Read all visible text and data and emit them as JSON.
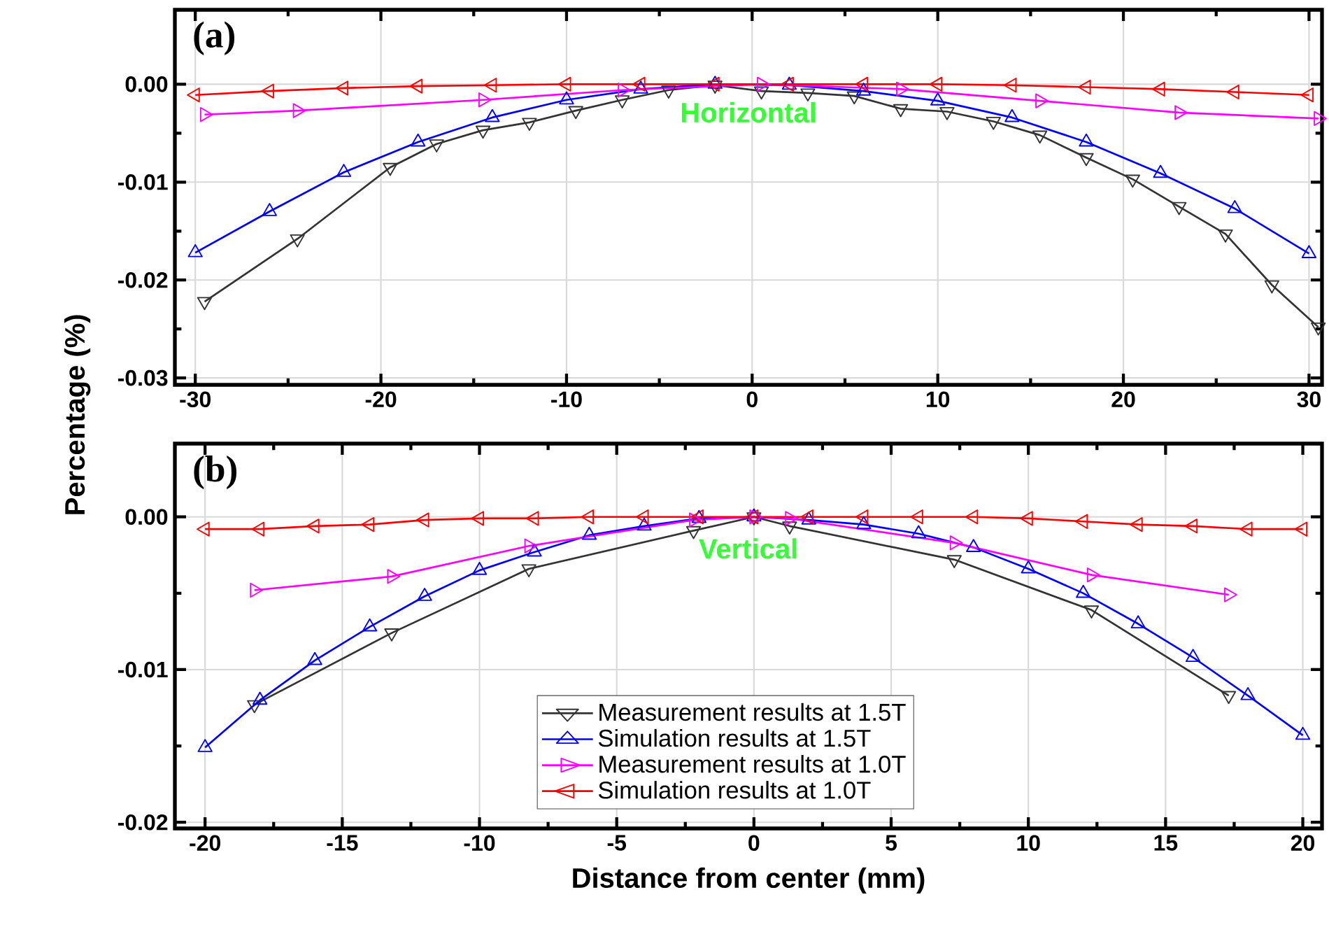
{
  "chart_data": [
    {
      "type": "line",
      "ylabel": "Percentage (%)",
      "annotations": [
        "(a)",
        "Horizontal"
      ],
      "xlim": [
        -31.1,
        30.7
      ],
      "xticks": [
        -30,
        -20,
        -10,
        0,
        10,
        20,
        30
      ],
      "ylim": [
        -0.0307,
        0.0076
      ],
      "yticks": [
        {
          "value": 0,
          "label": "0.00"
        },
        -0.01,
        -0.02,
        -0.03
      ],
      "grid": true,
      "legend": false,
      "tick_labels": "xy",
      "series": [
        {
          "color": "#333333",
          "marker": "triangle-down",
          "x": [
            -29.5,
            -24.5,
            -19.5,
            -17,
            -14.5,
            -12,
            -9.5,
            -7,
            -4.5,
            -2,
            0.5,
            3,
            5.5,
            8,
            10.5,
            13,
            15.5,
            18,
            20.5,
            23,
            25.5,
            28,
            30.5
          ],
          "values": [
            -0.0222,
            -0.0158,
            -0.0085,
            -0.0061,
            -0.0047,
            -0.0039,
            -0.0027,
            -0.0016,
            -0.0006,
            -0.0001,
            -0.0007,
            -0.0009,
            -0.0012,
            -0.0025,
            -0.0028,
            -0.0038,
            -0.0052,
            -0.0075,
            -0.0097,
            -0.0125,
            -0.0153,
            -0.0205,
            -0.0248
          ]
        },
        {
          "color": "#0000ff",
          "marker": "triangle",
          "x": [
            -30,
            -26,
            -22,
            -18,
            -14,
            -10,
            -6,
            -2,
            2,
            6,
            10,
            14,
            18,
            22,
            26,
            30
          ],
          "values": [
            -0.0172,
            -0.013,
            -0.009,
            -0.0059,
            -0.0034,
            -0.0016,
            -0.0005,
            0.0,
            -0.0001,
            -0.0007,
            -0.0017,
            -0.0034,
            -0.0059,
            -0.0091,
            -0.0127,
            -0.0173
          ]
        },
        {
          "color": "#ff00ff",
          "marker": "triangle-right",
          "x": [
            -29.5,
            -24.5,
            -14.5,
            -7,
            0.5,
            8,
            15.5,
            23,
            30.5
          ],
          "values": [
            -0.0031,
            -0.0027,
            -0.0016,
            -0.0006,
            0.0,
            -0.0005,
            -0.0017,
            -0.0029,
            -0.0035
          ]
        },
        {
          "color": "#ff0000",
          "marker": "triangle-left",
          "x": [
            -30,
            -26,
            -22,
            -18,
            -14,
            -10,
            -6,
            -2,
            2,
            6,
            10,
            14,
            18,
            22,
            26,
            30
          ],
          "values": [
            -0.0011,
            -0.0007,
            -0.0004,
            -0.0002,
            -0.0001,
            0.0,
            0.0,
            0.0,
            0.0,
            0.0,
            0.0,
            -0.0001,
            -0.0003,
            -0.0005,
            -0.0008,
            -0.0011
          ]
        }
      ]
    },
    {
      "type": "line",
      "xlabel": "Distance from center (mm)",
      "annotations": [
        "(b)",
        "Vertical"
      ],
      "xlim": [
        -21.1,
        20.7
      ],
      "xticks": [
        -20,
        -15,
        -10,
        -5,
        0,
        5,
        10,
        15,
        20
      ],
      "ylim": [
        -0.0204,
        0.0048
      ],
      "yticks": [
        {
          "value": 0,
          "label": "0.00"
        },
        -0.01,
        -0.02
      ],
      "grid": true,
      "legend": "bottom",
      "series": [
        {
          "name": "Measurement results at 1.5T",
          "color": "#333333",
          "marker": "triangle-down",
          "x": [
            -18.2,
            -13.2,
            -8.2,
            -2.2,
            0,
            1.3,
            7.3,
            12.3,
            17.3
          ],
          "values": [
            -0.0123,
            -0.0076,
            -0.0034,
            -0.0009,
            0.0,
            -0.0006,
            -0.0028,
            -0.0061,
            -0.0117
          ]
        },
        {
          "name": "Simulation results at 1.5T",
          "color": "#0000ff",
          "marker": "triangle",
          "x": [
            -20,
            -18,
            -16,
            -14,
            -12,
            -10,
            -8,
            -6,
            -4,
            -2,
            0,
            2,
            4,
            6,
            8,
            10,
            12,
            14,
            16,
            18,
            20
          ],
          "values": [
            -0.0151,
            -0.012,
            -0.0094,
            -0.0072,
            -0.0052,
            -0.0035,
            -0.0023,
            -0.0012,
            -0.0006,
            -0.0001,
            0.0,
            -0.0002,
            -0.0005,
            -0.0011,
            -0.002,
            -0.0034,
            -0.005,
            -0.007,
            -0.0092,
            -0.0117,
            -0.0143
          ]
        },
        {
          "name": "Measurement results at 1.0T",
          "color": "#ff00ff",
          "marker": "triangle-right",
          "x": [
            -18.2,
            -13.2,
            -8.2,
            -2.2,
            0,
            1.3,
            7.3,
            12.3,
            17.3
          ],
          "values": [
            -0.0048,
            -0.0039,
            -0.0019,
            -0.0002,
            0.0,
            -0.0001,
            -0.0017,
            -0.0038,
            -0.0051
          ]
        },
        {
          "name": "Simulation results at 1.0T",
          "color": "#ff0000",
          "marker": "triangle-left",
          "x": [
            -20,
            -18,
            -16,
            -14,
            -12,
            -10,
            -8,
            -6,
            -4,
            -2,
            0,
            2,
            4,
            6,
            8,
            10,
            12,
            14,
            16,
            18,
            20
          ],
          "values": [
            -0.0008,
            -0.0008,
            -0.0006,
            -0.0005,
            -0.0002,
            -0.0001,
            -0.0001,
            0.0,
            0.0,
            0.0,
            0.0,
            0.0,
            0.0,
            0.0,
            0.0,
            -0.0001,
            -0.0003,
            -0.0005,
            -0.0006,
            -0.0008,
            -0.0008
          ]
        }
      ]
    }
  ]
}
